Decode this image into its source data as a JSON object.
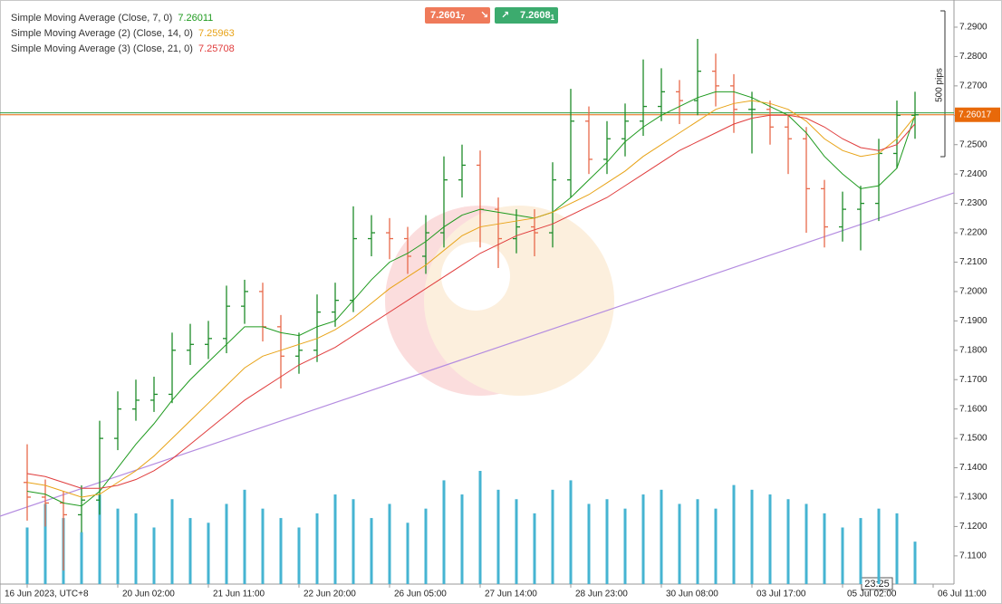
{
  "quote": {
    "sell": "7.2601",
    "sell_pip": "7",
    "buy": "7.2608",
    "buy_pip": "1"
  },
  "chart_data": {
    "type": "ohlc",
    "annotation": "500 pips",
    "time_label": "23:25",
    "bid": 7.26017,
    "ask": 7.26081,
    "categories": [
      "16 Jun 2023, UTC+8",
      null,
      null,
      null,
      null,
      "20 Jun 02:00",
      null,
      null,
      null,
      null,
      "21 Jun 11:00",
      null,
      null,
      null,
      null,
      "22 Jun 20:00",
      null,
      null,
      null,
      null,
      "26 Jun 05:00",
      null,
      null,
      null,
      null,
      "27 Jun 14:00",
      null,
      null,
      null,
      null,
      "28 Jun 23:00",
      null,
      null,
      null,
      null,
      "30 Jun 08:00",
      null,
      null,
      null,
      null,
      "03 Jul 17:00",
      null,
      null,
      null,
      null,
      "05 Jul 02:00",
      null,
      null,
      null,
      null,
      "06 Jul 11:00"
    ],
    "open": [
      7.135,
      7.13,
      7.128,
      7.124,
      7.129,
      7.15,
      7.16,
      7.163,
      7.165,
      7.18,
      7.182,
      7.184,
      7.195,
      7.2,
      7.188,
      7.178,
      7.18,
      7.193,
      7.197,
      7.218,
      7.22,
      7.218,
      7.212,
      7.22,
      7.238,
      7.243,
      7.228,
      7.218,
      7.222,
      7.22,
      7.238,
      7.258,
      7.245,
      7.252,
      7.258,
      7.263,
      7.268,
      7.265,
      7.275,
      7.27,
      7.262,
      7.262,
      7.256,
      7.252,
      7.235,
      7.222,
      7.228,
      7.23,
      7.247,
      7.26,
      null
    ],
    "high": [
      7.148,
      7.136,
      7.132,
      7.134,
      7.156,
      7.166,
      7.17,
      7.171,
      7.186,
      7.189,
      7.19,
      7.202,
      7.204,
      7.203,
      7.192,
      7.186,
      7.199,
      7.203,
      7.229,
      7.226,
      7.225,
      7.222,
      7.226,
      7.246,
      7.25,
      7.248,
      7.232,
      7.228,
      7.228,
      7.244,
      7.269,
      7.263,
      7.258,
      7.264,
      7.279,
      7.276,
      7.272,
      7.286,
      7.281,
      7.274,
      7.268,
      7.265,
      7.26,
      7.256,
      7.238,
      7.234,
      7.236,
      7.252,
      7.265,
      7.268,
      null
    ],
    "low": [
      7.122,
      7.12,
      7.105,
      7.118,
      7.124,
      7.146,
      7.156,
      7.159,
      7.162,
      7.175,
      7.177,
      7.179,
      7.189,
      7.183,
      7.167,
      7.172,
      7.176,
      7.188,
      7.193,
      7.212,
      7.211,
      7.206,
      7.206,
      7.215,
      7.232,
      7.215,
      7.208,
      7.213,
      7.212,
      7.215,
      7.232,
      7.24,
      7.24,
      7.246,
      7.253,
      7.258,
      7.257,
      7.26,
      7.263,
      7.254,
      7.247,
      7.25,
      7.24,
      7.22,
      7.215,
      7.217,
      7.214,
      7.224,
      7.242,
      7.252,
      null
    ],
    "close": [
      7.13,
      7.128,
      7.124,
      7.129,
      7.15,
      7.16,
      7.163,
      7.165,
      7.18,
      7.182,
      7.184,
      7.195,
      7.2,
      7.188,
      7.178,
      7.18,
      7.193,
      7.197,
      7.218,
      7.22,
      7.218,
      7.212,
      7.22,
      7.238,
      7.243,
      7.228,
      7.218,
      7.222,
      7.22,
      7.238,
      7.258,
      7.245,
      7.252,
      7.258,
      7.263,
      7.268,
      7.265,
      7.275,
      7.27,
      7.262,
      7.262,
      7.256,
      7.252,
      7.235,
      7.222,
      7.228,
      7.23,
      7.247,
      7.26,
      7.26017,
      null
    ],
    "up_color": "#1e8c2a",
    "down_color": "#e8694a",
    "volume": [
      60,
      85,
      70,
      55,
      95,
      80,
      75,
      60,
      90,
      70,
      65,
      85,
      100,
      80,
      70,
      60,
      75,
      95,
      90,
      70,
      85,
      65,
      80,
      110,
      95,
      120,
      100,
      90,
      75,
      100,
      110,
      85,
      90,
      80,
      95,
      100,
      85,
      90,
      80,
      105,
      100,
      95,
      90,
      85,
      75,
      60,
      70,
      80,
      75,
      45,
      null
    ],
    "volume_color": "#46b4d2",
    "series": [
      {
        "name": "Simple Moving Average (Close, 7, 0)",
        "color": "#1e9a1e",
        "values": [
          7.132,
          7.131,
          7.128,
          7.127,
          7.132,
          7.14,
          7.148,
          7.155,
          7.163,
          7.17,
          7.176,
          7.182,
          7.188,
          7.188,
          7.186,
          7.185,
          7.188,
          7.19,
          7.197,
          7.204,
          7.21,
          7.213,
          7.217,
          7.222,
          7.226,
          7.228,
          7.227,
          7.226,
          7.225,
          7.227,
          7.232,
          7.238,
          7.244,
          7.251,
          7.256,
          7.26,
          7.263,
          7.266,
          7.268,
          7.268,
          7.266,
          7.263,
          7.26,
          7.254,
          7.246,
          7.24,
          7.235,
          7.236,
          7.242,
          7.26011,
          null
        ]
      },
      {
        "name": "Simple Moving Average (2) (Close, 14, 0)",
        "color": "#e8a317",
        "values": [
          7.135,
          7.134,
          7.132,
          7.13,
          7.131,
          7.135,
          7.139,
          7.144,
          7.15,
          7.156,
          7.162,
          7.168,
          7.174,
          7.178,
          7.18,
          7.182,
          7.184,
          7.187,
          7.191,
          7.196,
          7.201,
          7.205,
          7.209,
          7.214,
          7.219,
          7.222,
          7.223,
          7.224,
          7.225,
          7.227,
          7.23,
          7.233,
          7.237,
          7.241,
          7.246,
          7.25,
          7.254,
          7.258,
          7.262,
          7.264,
          7.265,
          7.264,
          7.262,
          7.258,
          7.252,
          7.248,
          7.246,
          7.247,
          7.252,
          7.25963,
          null
        ]
      },
      {
        "name": "Simple Moving Average (3) (Close, 21, 0)",
        "color": "#e03c3c",
        "values": [
          7.138,
          7.137,
          7.135,
          7.133,
          7.133,
          7.134,
          7.136,
          7.139,
          7.143,
          7.148,
          7.153,
          7.158,
          7.163,
          7.167,
          7.171,
          7.175,
          7.178,
          7.181,
          7.185,
          7.189,
          7.193,
          7.197,
          7.201,
          7.205,
          7.209,
          7.213,
          7.216,
          7.219,
          7.221,
          7.223,
          7.226,
          7.229,
          7.232,
          7.236,
          7.24,
          7.244,
          7.248,
          7.251,
          7.254,
          7.257,
          7.259,
          7.26,
          7.26,
          7.259,
          7.256,
          7.252,
          7.249,
          7.248,
          7.25,
          7.25708,
          null
        ]
      }
    ],
    "trendline": {
      "x": [
        -1.5,
        51.15
      ],
      "y": [
        7.1235,
        7.2336
      ],
      "color": "#b48ce0"
    },
    "ylim": [
      7.1004,
      7.2977
    ],
    "yticks": [
      {
        "value": 7.11,
        "label": "7.1100"
      },
      {
        "value": 7.12,
        "label": "7.1200"
      },
      {
        "value": 7.13,
        "label": "7.1300"
      },
      {
        "value": 7.14,
        "label": "7.1400"
      },
      {
        "value": 7.15,
        "label": "7.1500"
      },
      {
        "value": 7.16,
        "label": "7.1600"
      },
      {
        "value": 7.17,
        "label": "7.1700"
      },
      {
        "value": 7.18,
        "label": "7.1800"
      },
      {
        "value": 7.19,
        "label": "7.1900"
      },
      {
        "value": 7.2,
        "label": "7.2000"
      },
      {
        "value": 7.21,
        "label": "7.2100"
      },
      {
        "value": 7.22,
        "label": "7.2200"
      },
      {
        "value": 7.23,
        "label": "7.2300"
      },
      {
        "value": 7.24,
        "label": "7.2400"
      },
      {
        "value": 7.25,
        "label": "7.2500"
      },
      {
        "value": 7.26,
        "label": "7.2600"
      },
      {
        "value": 7.27,
        "label": "7.2700"
      },
      {
        "value": 7.28,
        "label": "7.2800"
      },
      {
        "value": 7.29,
        "label": "7.2900"
      }
    ]
  }
}
